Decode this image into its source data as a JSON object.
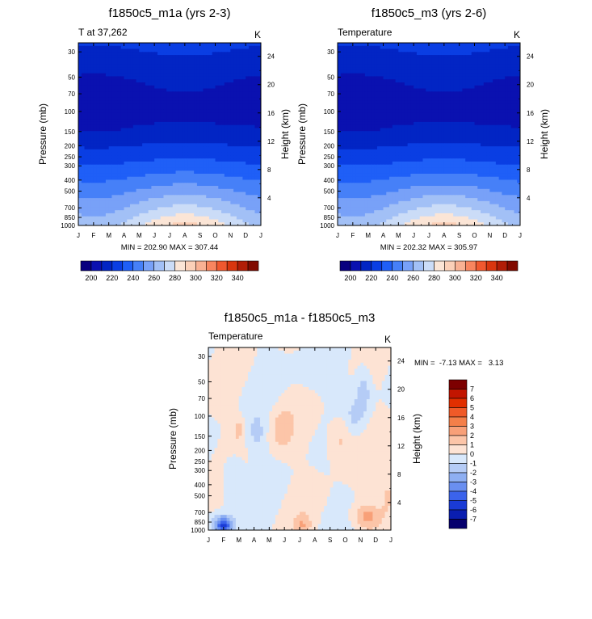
{
  "chart_data": [
    {
      "type": "heatmap",
      "title": "f1850c5_m1a (yrs 2-3)",
      "left_subtitle": "T at 37,262",
      "right_subtitle": "K",
      "ylabel": "Pressure (mb)",
      "ylabel_right": "Height (km)",
      "x_ticks": [
        "J",
        "F",
        "M",
        "A",
        "M",
        "J",
        "J",
        "A",
        "S",
        "O",
        "N",
        "D",
        "J"
      ],
      "y_ticks": [
        "30",
        "50",
        "70",
        "100",
        "150",
        "200",
        "250",
        "300",
        "400",
        "500",
        "700",
        "850",
        "1000"
      ],
      "y_ticks_right": [
        "24",
        "20",
        "16",
        "12",
        "8",
        "4"
      ],
      "stats": "MIN = 202.90 MAX = 307.44",
      "colorbar_labels": [
        "200",
        "220",
        "240",
        "260",
        "280",
        "300",
        "320",
        "340"
      ],
      "levels": [
        190,
        200,
        210,
        220,
        230,
        240,
        250,
        260,
        270,
        280,
        290,
        300,
        310,
        320,
        330,
        340,
        350
      ],
      "ylim": [
        1000,
        25
      ]
    },
    {
      "type": "heatmap",
      "title": "f1850c5_m3 (yrs 2-6)",
      "left_subtitle": "Temperature",
      "right_subtitle": "K",
      "ylabel": "Pressure (mb)",
      "ylabel_right": "Height (km)",
      "x_ticks": [
        "J",
        "F",
        "M",
        "A",
        "M",
        "J",
        "J",
        "A",
        "S",
        "O",
        "N",
        "D",
        "J"
      ],
      "y_ticks": [
        "30",
        "50",
        "70",
        "100",
        "150",
        "200",
        "250",
        "300",
        "400",
        "500",
        "700",
        "850",
        "1000"
      ],
      "y_ticks_right": [
        "24",
        "20",
        "16",
        "12",
        "8",
        "4"
      ],
      "stats": "MIN = 202.32 MAX = 305.97",
      "colorbar_labels": [
        "200",
        "220",
        "240",
        "260",
        "280",
        "300",
        "320",
        "340"
      ],
      "levels": [
        190,
        200,
        210,
        220,
        230,
        240,
        250,
        260,
        270,
        280,
        290,
        300,
        310,
        320,
        330,
        340,
        350
      ],
      "ylim": [
        1000,
        25
      ]
    },
    {
      "type": "heatmap",
      "title": "f1850c5_m1a - f1850c5_m3",
      "left_subtitle": "Temperature",
      "right_subtitle": "K",
      "ylabel": "Pressure (mb)",
      "ylabel_right": "Height (km)",
      "x_ticks": [
        "J",
        "F",
        "M",
        "A",
        "M",
        "J",
        "J",
        "A",
        "S",
        "O",
        "N",
        "D",
        "J"
      ],
      "y_ticks": [
        "30",
        "50",
        "70",
        "100",
        "150",
        "200",
        "250",
        "300",
        "400",
        "500",
        "700",
        "850",
        "1000"
      ],
      "y_ticks_right": [
        "24",
        "20",
        "16",
        "12",
        "8",
        "4"
      ],
      "stats": "MIN =  -7.13 MAX =   3.13",
      "colorbar_labels": [
        "7",
        "6",
        "5",
        "4",
        "3",
        "2",
        "1",
        "0",
        "-1",
        "-2",
        "-3",
        "-4",
        "-5",
        "-6",
        "-7"
      ],
      "ylim": [
        1000,
        25
      ]
    }
  ],
  "colors": {
    "temp_palette": [
      "#08007f",
      "#0a11b0",
      "#0225c4",
      "#0a3ee3",
      "#1f5ff7",
      "#4680f8",
      "#78a1f8",
      "#a2c0f6",
      "#cbdcf7",
      "#fbe5d6",
      "#fbd0b8",
      "#f9b193",
      "#f8855f",
      "#f0582f",
      "#d9360f",
      "#b11d07",
      "#810a00"
    ],
    "diff_palette": [
      "#7d0000",
      "#c21500",
      "#e12f00",
      "#f05a28",
      "#f47f49",
      "#f8a078",
      "#fcc5a8",
      "#fde3d4",
      "#d8e8fb",
      "#b5ccf6",
      "#8eaff2",
      "#6a8ff0",
      "#3b63ec",
      "#1a3bd6",
      "#0a1eb0",
      "#06006e"
    ]
  }
}
